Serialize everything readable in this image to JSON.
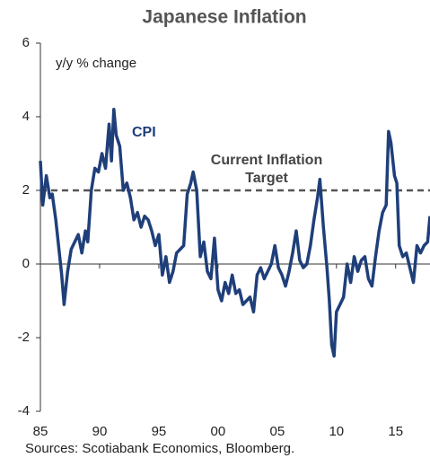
{
  "chart_data": {
    "type": "line",
    "title": "Japanese Inflation",
    "ylabel": "y/y % change",
    "source": "Sources: Scotiabank Economics, Bloomberg.",
    "xlim": [
      1985,
      2017.9
    ],
    "ylim": [
      -4,
      6
    ],
    "xticks": [
      {
        "value": 1985,
        "label": "85"
      },
      {
        "value": 1990,
        "label": "90"
      },
      {
        "value": 1995,
        "label": "95"
      },
      {
        "value": 2000,
        "label": "00"
      },
      {
        "value": 2005,
        "label": "05"
      },
      {
        "value": 2010,
        "label": "10"
      },
      {
        "value": 2015,
        "label": "15"
      }
    ],
    "yticks": [
      -4,
      -2,
      0,
      2,
      4,
      6
    ],
    "target": 2,
    "target_color": "#555555",
    "target_label": [
      "Current Inflation",
      "Target"
    ],
    "x": [
      1985.0,
      1985.2,
      1985.5,
      1985.8,
      1986.0,
      1986.3,
      1986.6,
      1986.8,
      1987.0,
      1987.3,
      1987.6,
      1987.9,
      1988.2,
      1988.5,
      1988.8,
      1989.0,
      1989.3,
      1989.6,
      1989.9,
      1990.2,
      1990.5,
      1990.8,
      1991.0,
      1991.2,
      1991.4,
      1991.7,
      1992.0,
      1992.3,
      1992.6,
      1992.9,
      1993.2,
      1993.5,
      1993.8,
      1994.1,
      1994.4,
      1994.7,
      1995.0,
      1995.3,
      1995.6,
      1995.9,
      1996.2,
      1996.5,
      1996.8,
      1997.1,
      1997.4,
      1997.7,
      1997.9,
      1998.2,
      1998.5,
      1998.8,
      1999.1,
      1999.4,
      1999.7,
      2000.0,
      2000.3,
      2000.6,
      2000.9,
      2001.2,
      2001.5,
      2001.8,
      2002.1,
      2002.4,
      2002.7,
      2003.0,
      2003.3,
      2003.6,
      2003.9,
      2004.2,
      2004.5,
      2004.8,
      2005.1,
      2005.4,
      2005.7,
      2006.0,
      2006.3,
      2006.6,
      2006.9,
      2007.2,
      2007.5,
      2007.8,
      2008.1,
      2008.4,
      2008.6,
      2008.9,
      2009.2,
      2009.4,
      2009.6,
      2009.8,
      2010.0,
      2010.3,
      2010.6,
      2010.9,
      2011.2,
      2011.5,
      2011.8,
      2012.1,
      2012.4,
      2012.7,
      2013.0,
      2013.3,
      2013.6,
      2013.9,
      2014.2,
      2014.4,
      2014.6,
      2014.9,
      2015.1,
      2015.3,
      2015.6,
      2015.9,
      2016.2,
      2016.5,
      2016.8,
      2017.1,
      2017.4,
      2017.7,
      2017.9
    ],
    "series": [
      {
        "name": "CPI",
        "color": "#1f3f7a",
        "values": [
          2.8,
          1.6,
          2.4,
          1.8,
          1.9,
          1.2,
          0.3,
          -0.3,
          -1.1,
          -0.2,
          0.4,
          0.6,
          0.8,
          0.3,
          0.9,
          0.6,
          2.0,
          2.6,
          2.5,
          3.0,
          2.6,
          3.8,
          2.8,
          4.2,
          3.5,
          3.2,
          2.0,
          2.2,
          1.8,
          1.2,
          1.4,
          1.0,
          1.3,
          1.2,
          0.9,
          0.5,
          0.8,
          -0.3,
          0.2,
          -0.5,
          -0.2,
          0.3,
          0.4,
          0.5,
          1.9,
          2.2,
          2.5,
          2.0,
          0.2,
          0.6,
          -0.2,
          -0.4,
          0.7,
          -0.7,
          -1.0,
          -0.5,
          -0.8,
          -0.3,
          -0.8,
          -0.7,
          -1.1,
          -1.0,
          -0.9,
          -1.3,
          -0.3,
          -0.1,
          -0.4,
          -0.2,
          0.0,
          0.5,
          -0.1,
          -0.3,
          -0.6,
          -0.2,
          0.3,
          0.9,
          0.1,
          -0.1,
          0.0,
          0.5,
          1.2,
          1.8,
          2.3,
          1.0,
          -0.1,
          -1.0,
          -2.2,
          -2.5,
          -1.3,
          -1.1,
          -0.9,
          0.0,
          -0.5,
          0.2,
          -0.2,
          0.1,
          0.2,
          -0.4,
          -0.6,
          0.2,
          0.9,
          1.4,
          1.6,
          3.6,
          3.3,
          2.4,
          2.2,
          0.5,
          0.2,
          0.3,
          -0.1,
          -0.5,
          0.5,
          0.3,
          0.5,
          0.6,
          1.3
        ]
      }
    ]
  }
}
